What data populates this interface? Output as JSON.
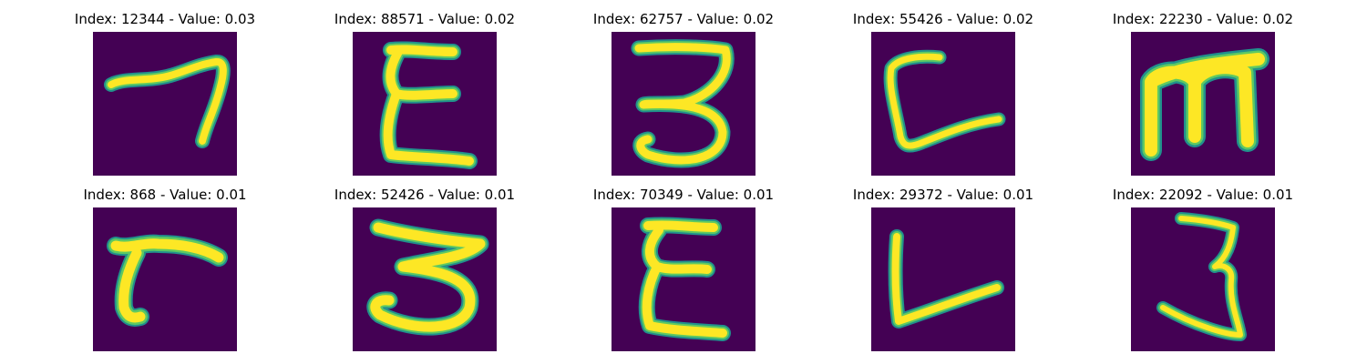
{
  "colors": {
    "background": "#440154",
    "stroke_outer": "#21918c",
    "stroke_mid": "#5ec962",
    "stroke_core": "#fde725",
    "title_text": "#000000"
  },
  "rows": [
    [
      {
        "title": "Index: 12344 - Value: 0.03",
        "glyph": "seven-like-stroke"
      },
      {
        "title": "Index: 88571 - Value: 0.02",
        "glyph": "epsilon-stroke"
      },
      {
        "title": "Index: 62757 - Value: 0.02",
        "glyph": "three-stroke"
      },
      {
        "title": "Index: 55426 - Value: 0.02",
        "glyph": "L-curve-stroke"
      },
      {
        "title": "Index: 22230 - Value: 0.02",
        "glyph": "m-stroke"
      }
    ],
    [
      {
        "title": "Index: 868 - Value: 0.01",
        "glyph": "r-stroke"
      },
      {
        "title": "Index: 52426 - Value: 0.01",
        "glyph": "three-stroke"
      },
      {
        "title": "Index: 70349 - Value: 0.01",
        "glyph": "epsilon-stroke"
      },
      {
        "title": "Index: 29372 - Value: 0.01",
        "glyph": "L-stroke"
      },
      {
        "title": "Index: 22092 - Value: 0.01",
        "glyph": "three-stroke"
      }
    ]
  ]
}
